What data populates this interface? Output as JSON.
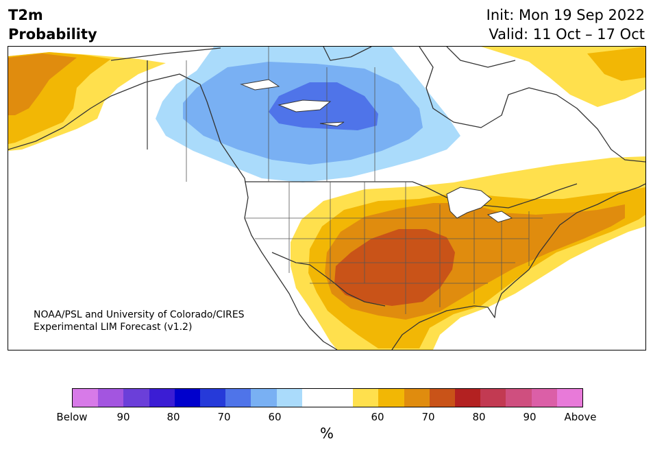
{
  "header": {
    "title_line1": "T2m",
    "title_line2": "Probability",
    "init": "Init: Mon 19 Sep 2022",
    "valid": "Valid: 11 Oct – 17 Oct"
  },
  "credit": {
    "line1": "NOAA/PSL and University of Colorado/CIRES",
    "line2": "Experimental LIM Forecast (v1.2)"
  },
  "colorbar": {
    "unit": "%",
    "colors": [
      "#d77ae8",
      "#a355e0",
      "#6b3fd9",
      "#3b1dd4",
      "#0000cc",
      "#263ad9",
      "#4f74e9",
      "#79b0f3",
      "#aadbfb",
      "#ffffff",
      "#ffffff",
      "#ffe04d",
      "#f2b705",
      "#e08c0e",
      "#c95318",
      "#b32121",
      "#c23a52",
      "#cf4f7f",
      "#db5fa7",
      "#e87ad9"
    ],
    "ticks": [
      "Below",
      "90",
      "80",
      "70",
      "60",
      "60",
      "70",
      "80",
      "90",
      "Above"
    ]
  },
  "map": {
    "regions": [
      {
        "category": "Below",
        "level": "60%",
        "color": "#aadbfb"
      },
      {
        "category": "Below",
        "level": "70%",
        "color": "#79b0f3"
      },
      {
        "category": "Below",
        "level": "80%",
        "color": "#4f74e9"
      },
      {
        "category": "Above",
        "level": "60%",
        "color": "#ffe04d"
      },
      {
        "category": "Above",
        "level": "70%",
        "color": "#f2b705"
      },
      {
        "category": "Above",
        "level": "80%",
        "color": "#e08c0e"
      },
      {
        "category": "Above",
        "level": "90%",
        "color": "#c95318"
      }
    ]
  }
}
